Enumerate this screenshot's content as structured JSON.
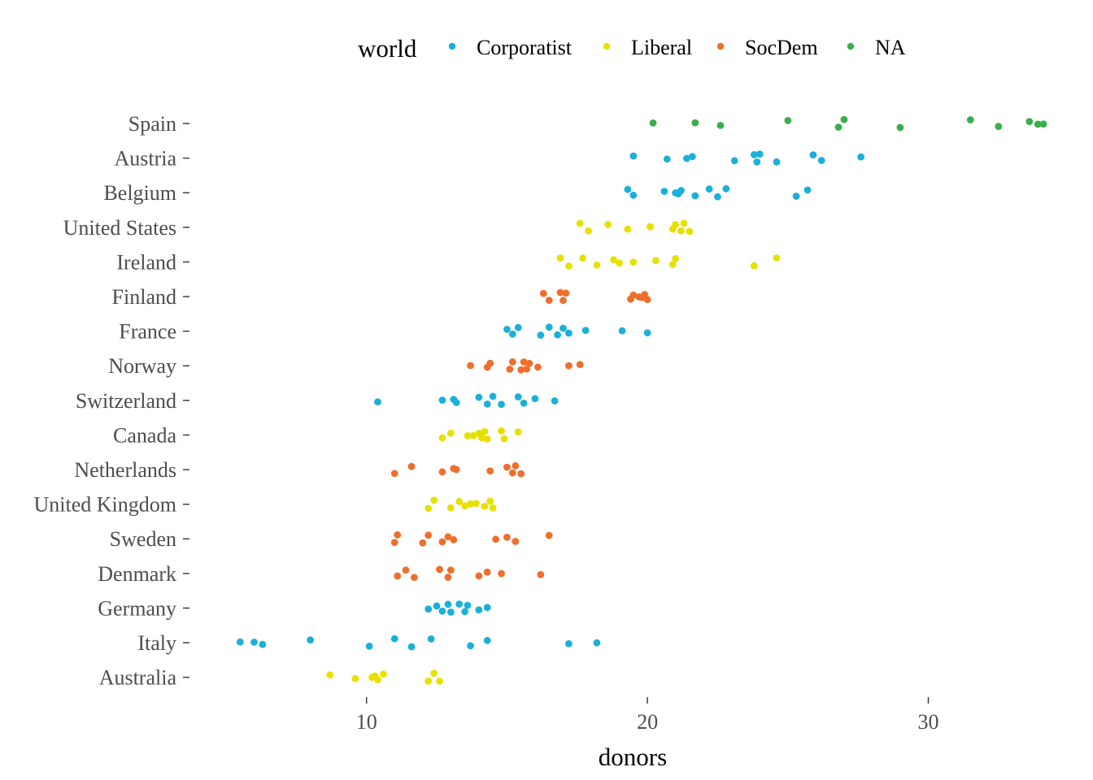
{
  "chart_data": {
    "type": "scatter",
    "xlabel": "donors",
    "ylabel": "",
    "xlim": [
      3.9,
      34.3
    ],
    "x_ticks": [
      "10",
      "20",
      "30"
    ],
    "x_tick_values": [
      10,
      20,
      30
    ],
    "grid": false,
    "legend": {
      "title": "world",
      "position": "top",
      "entries": [
        {
          "label": "Corporatist",
          "color": "#1bb0d8"
        },
        {
          "label": "Liberal",
          "color": "#e6e100"
        },
        {
          "label": "SocDem",
          "color": "#ee6f2d"
        },
        {
          "label": "NA",
          "color": "#3aae4c"
        }
      ]
    },
    "categories": [
      "Spain",
      "Austria",
      "Belgium",
      "United States",
      "Ireland",
      "Finland",
      "France",
      "Norway",
      "Switzerland",
      "Canada",
      "Netherlands",
      "United Kingdom",
      "Sweden",
      "Denmark",
      "Germany",
      "Italy",
      "Australia"
    ],
    "series": [
      {
        "category": "Spain",
        "group": "NA",
        "values": [
          20.2,
          21.7,
          22.6,
          25.0,
          26.8,
          27.0,
          29.0,
          31.5,
          32.5,
          33.6,
          33.9,
          34.1
        ]
      },
      {
        "category": "Austria",
        "group": "Corporatist",
        "values": [
          19.5,
          20.7,
          21.4,
          21.6,
          23.1,
          23.8,
          23.9,
          24.0,
          24.6,
          25.9,
          26.2,
          27.6
        ]
      },
      {
        "category": "Belgium",
        "group": "Corporatist",
        "values": [
          19.3,
          19.5,
          20.6,
          21.0,
          21.1,
          21.2,
          21.7,
          22.2,
          22.5,
          22.8,
          25.3,
          25.7
        ]
      },
      {
        "category": "United States",
        "group": "Liberal",
        "values": [
          17.6,
          17.9,
          18.6,
          19.3,
          20.1,
          20.1,
          20.9,
          21.0,
          21.2,
          21.3,
          21.5
        ]
      },
      {
        "category": "Ireland",
        "group": "Liberal",
        "values": [
          16.9,
          17.2,
          17.7,
          18.2,
          18.8,
          19.0,
          19.5,
          20.3,
          20.9,
          21.0,
          23.8,
          24.6
        ]
      },
      {
        "category": "Finland",
        "group": "SocDem",
        "values": [
          16.3,
          16.5,
          16.9,
          17.0,
          17.1,
          19.4,
          19.5,
          19.7,
          19.8,
          19.9,
          20.0
        ]
      },
      {
        "category": "France",
        "group": "Corporatist",
        "values": [
          15.0,
          15.2,
          15.4,
          16.2,
          16.5,
          16.8,
          17.0,
          17.2,
          17.8,
          19.1,
          20.0
        ]
      },
      {
        "category": "Norway",
        "group": "SocDem",
        "values": [
          13.7,
          14.3,
          14.4,
          15.1,
          15.2,
          15.5,
          15.6,
          15.7,
          15.8,
          16.1,
          17.2,
          17.6
        ]
      },
      {
        "category": "Switzerland",
        "group": "Corporatist",
        "values": [
          10.4,
          12.7,
          13.1,
          13.2,
          14.0,
          14.3,
          14.5,
          14.8,
          15.4,
          15.6,
          16.0,
          16.7
        ]
      },
      {
        "category": "Canada",
        "group": "Liberal",
        "values": [
          12.7,
          13.0,
          13.6,
          13.8,
          14.0,
          14.1,
          14.2,
          14.3,
          14.8,
          14.9,
          15.4
        ]
      },
      {
        "category": "Netherlands",
        "group": "SocDem",
        "values": [
          11.0,
          11.6,
          12.7,
          13.1,
          13.2,
          14.4,
          15.0,
          15.2,
          15.3,
          15.5
        ]
      },
      {
        "category": "United Kingdom",
        "group": "Liberal",
        "values": [
          12.2,
          12.4,
          13.0,
          13.3,
          13.5,
          13.7,
          13.9,
          14.2,
          14.4,
          14.5
        ]
      },
      {
        "category": "Sweden",
        "group": "SocDem",
        "values": [
          11.0,
          11.1,
          12.0,
          12.2,
          12.7,
          12.9,
          13.1,
          14.6,
          15.0,
          15.3,
          16.5
        ]
      },
      {
        "category": "Denmark",
        "group": "SocDem",
        "values": [
          11.1,
          11.4,
          11.7,
          12.6,
          12.9,
          13.0,
          14.0,
          14.3,
          14.8,
          16.2
        ]
      },
      {
        "category": "Germany",
        "group": "Corporatist",
        "values": [
          12.2,
          12.5,
          12.7,
          12.9,
          13.0,
          13.3,
          13.5,
          13.6,
          14.0,
          14.3
        ]
      },
      {
        "category": "Italy",
        "group": "Corporatist",
        "values": [
          5.5,
          6.0,
          6.3,
          8.0,
          10.1,
          11.0,
          11.6,
          12.3,
          13.7,
          14.3,
          17.2,
          18.2
        ]
      },
      {
        "category": "Australia",
        "group": "Liberal",
        "values": [
          8.7,
          9.6,
          10.2,
          10.3,
          10.4,
          10.6,
          12.2,
          12.4,
          12.6
        ]
      }
    ]
  }
}
